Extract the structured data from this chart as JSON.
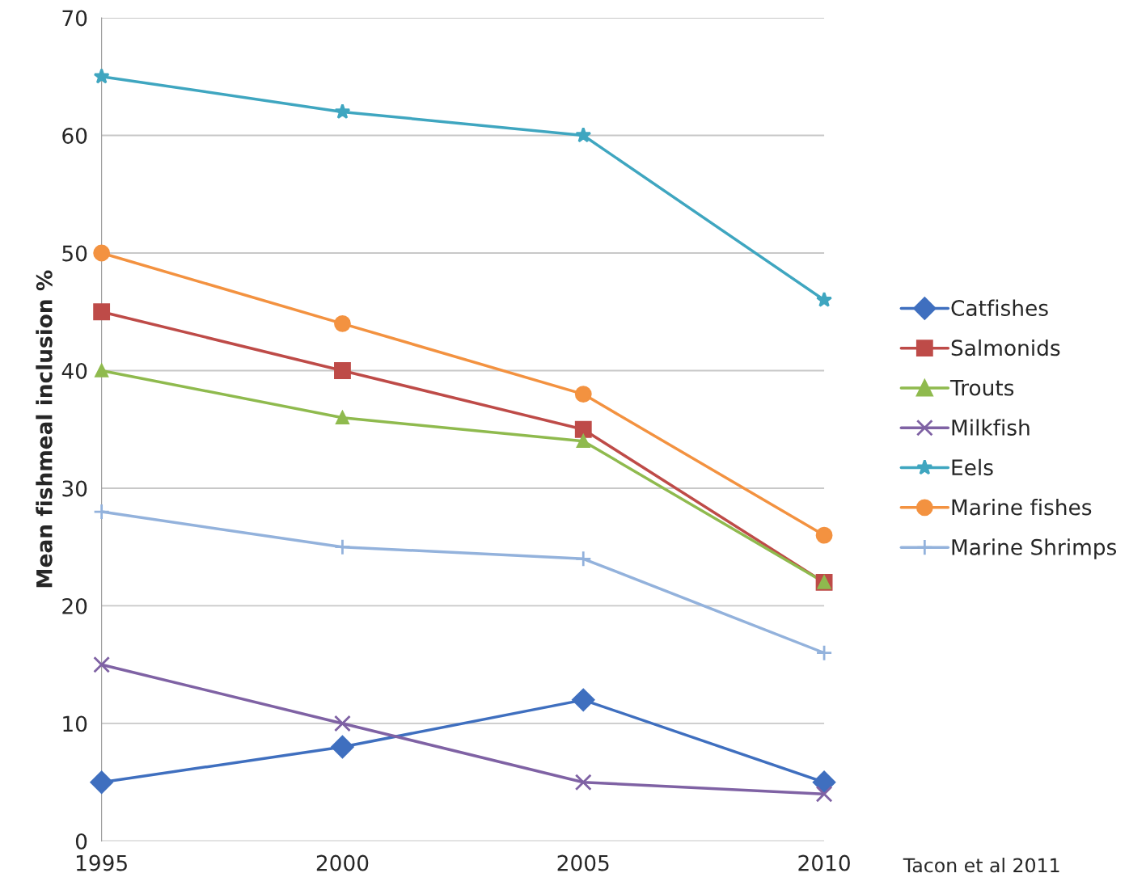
{
  "chart_data": {
    "type": "line",
    "ylabel": "Mean fishmeal inclusion %",
    "x": [
      1995,
      2000,
      2005,
      2010
    ],
    "xlim": [
      1995,
      2010
    ],
    "xticks": [
      1995,
      2000,
      2005,
      2010
    ],
    "ylim": [
      0,
      70
    ],
    "yticks": [
      0,
      10,
      20,
      30,
      40,
      50,
      60,
      70
    ],
    "grid": "y",
    "legend": "right",
    "annotations": [
      "Tacon et al 2011"
    ],
    "series": [
      {
        "name": "Catfishes",
        "color": "#3f6fbf",
        "marker": "diamond",
        "values": [
          5,
          8,
          12,
          5
        ]
      },
      {
        "name": "Salmonids",
        "color": "#be4b48",
        "marker": "square",
        "values": [
          45,
          40,
          35,
          22
        ]
      },
      {
        "name": "Trouts",
        "color": "#8fba4e",
        "marker": "triangle",
        "values": [
          40,
          36,
          34,
          22
        ]
      },
      {
        "name": "Milkfish",
        "color": "#7f62a4",
        "marker": "x",
        "values": [
          15,
          10,
          5,
          4
        ]
      },
      {
        "name": "Eels",
        "color": "#3fa6c0",
        "marker": "star",
        "values": [
          65,
          62,
          60,
          46
        ]
      },
      {
        "name": "Marine fishes",
        "color": "#f39240",
        "marker": "circle",
        "values": [
          50,
          44,
          38,
          26
        ]
      },
      {
        "name": "Marine Shrimps",
        "color": "#93b2dc",
        "marker": "cross",
        "values": [
          28,
          25,
          24,
          16
        ]
      }
    ]
  }
}
